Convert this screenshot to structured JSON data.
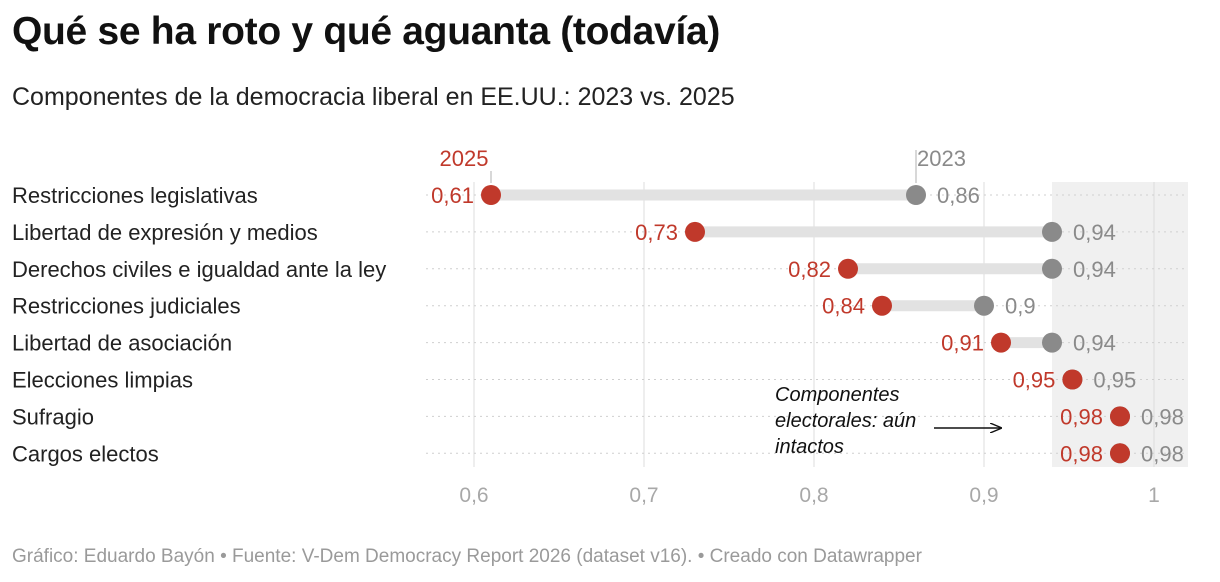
{
  "title": "Qué se ha roto y qué aguanta (todavía)",
  "subtitle": "Componentes de la democracia liberal en EE.UU.: 2023 vs. 2025",
  "footer": "Gráfico: Eduardo Bayón • Fuente: V-Dem Democracy Report 2026 (dataset v16). • Creado con Datawrapper",
  "colors": {
    "series_2025": "#c0392b",
    "series_2023": "#8a8a8a",
    "range_bar": "#e2e2e2",
    "highlight_band": "#f0f0f0",
    "tick_label": "#a8a8a8",
    "row_label": "#222222"
  },
  "chart_data": {
    "type": "dot-range",
    "x_ticks": [
      0.6,
      0.7,
      0.8,
      0.9,
      1
    ],
    "x_tick_labels": [
      "0,6",
      "0,7",
      "0,8",
      "0,9",
      "1"
    ],
    "xlim": [
      0.58,
      1.02
    ],
    "highlight_band_range": [
      0.94,
      1.02
    ],
    "grid": true,
    "legend": {
      "series_2025": "2025",
      "series_2023": "2023"
    },
    "categories": [
      "Restricciones legislativas",
      "Libertad de expresión y medios",
      "Derechos civiles e igualdad ante la ley",
      "Restricciones judiciales",
      "Libertad de asociación",
      "Elecciones limpias",
      "Sufragio",
      "Cargos electos"
    ],
    "series": [
      {
        "name": "2025",
        "values": [
          0.61,
          0.73,
          0.82,
          0.84,
          0.91,
          0.952,
          0.98,
          0.98
        ],
        "labels": [
          "0,61",
          "0,73",
          "0,82",
          "0,84",
          "0,91",
          "0,95",
          "0,98",
          "0,98"
        ]
      },
      {
        "name": "2023",
        "values": [
          0.86,
          0.94,
          0.94,
          0.9,
          0.94,
          0.952,
          0.98,
          0.98
        ],
        "labels": [
          "0,86",
          "0,94",
          "0,94",
          "0,9",
          "0,94",
          "0,95",
          "0,98",
          "0,98"
        ]
      }
    ],
    "annotation": {
      "lines": [
        "Componentes",
        "electorales: aún",
        "intactos"
      ],
      "arrow_to_value": 0.91
    }
  }
}
